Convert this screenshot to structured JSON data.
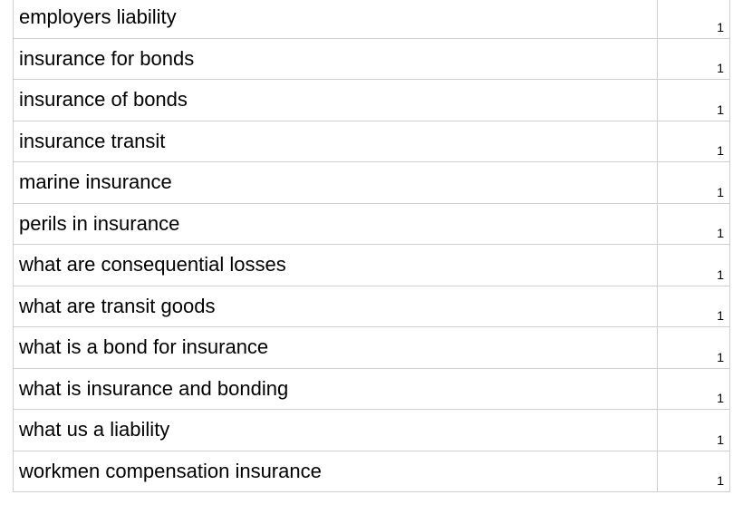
{
  "rows": [
    {
      "term": "employers liability",
      "count": "1"
    },
    {
      "term": "insurance for bonds",
      "count": "1"
    },
    {
      "term": "insurance of bonds",
      "count": "1"
    },
    {
      "term": "insurance transit",
      "count": "1"
    },
    {
      "term": "marine insurance",
      "count": "1"
    },
    {
      "term": "perils in insurance",
      "count": "1"
    },
    {
      "term": "what are consequential losses",
      "count": "1"
    },
    {
      "term": "what are transit goods",
      "count": "1"
    },
    {
      "term": "what is a bond for insurance",
      "count": "1"
    },
    {
      "term": "what is insurance and bonding",
      "count": "1"
    },
    {
      "term": "what us a liability",
      "count": "1"
    },
    {
      "term": "workmen compensation insurance",
      "count": "1"
    }
  ]
}
